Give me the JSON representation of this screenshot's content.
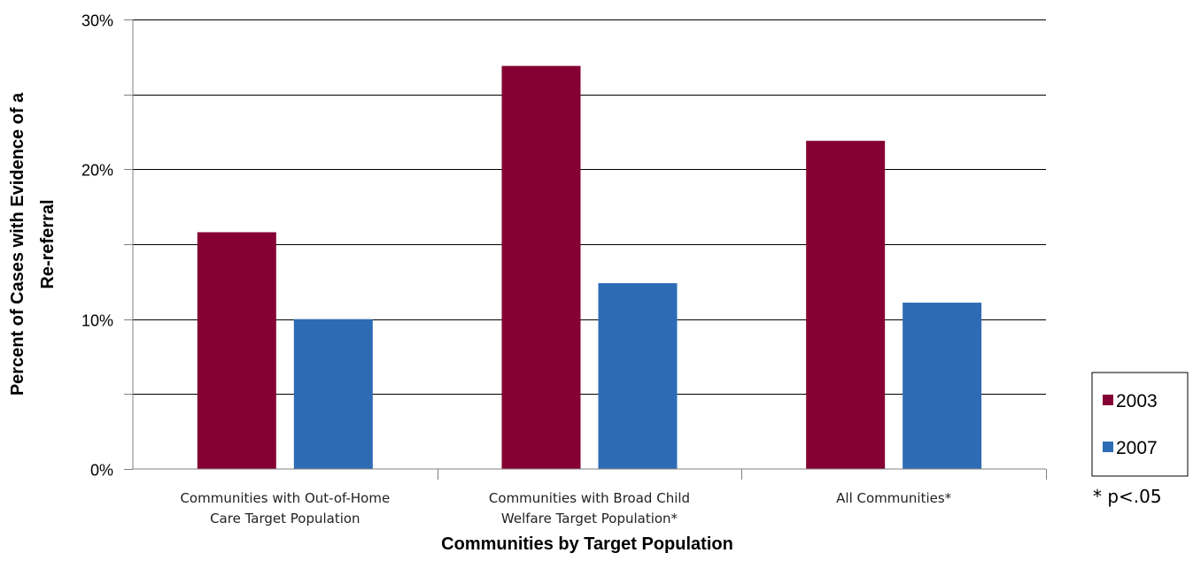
{
  "chart_data": {
    "type": "bar",
    "title": "",
    "xlabel": "Communities by Target Population",
    "ylabel": "Percent of Cases with Evidence of a Re-referral",
    "ylabel_lines": [
      "Percent of Cases with Evidence of a",
      "Re-referral"
    ],
    "ylim": [
      0,
      0.3
    ],
    "yticks": [
      0,
      0.05,
      0.1,
      0.15,
      0.2,
      0.25,
      0.3
    ],
    "ytick_labels": [
      "0%",
      "",
      "10%",
      "",
      "20%",
      "",
      "30%"
    ],
    "grid": true,
    "legend_position": "right",
    "categories": [
      "Communities with Out-of-Home Care Target Population",
      "Communities with Broad Child Welfare Target Population*",
      "All Communities*"
    ],
    "category_label_lines": [
      [
        "Communities with Out-of-Home",
        "Care Target Population"
      ],
      [
        "Communities with Broad Child",
        "Welfare Target Population*"
      ],
      [
        "All Communities*"
      ]
    ],
    "series": [
      {
        "name": "2003",
        "color": "#850033",
        "values": [
          0.158,
          0.269,
          0.219
        ]
      },
      {
        "name": "2007",
        "color": "#2e6bb5",
        "values": [
          0.1,
          0.124,
          0.111
        ]
      }
    ],
    "note": "* p<.05"
  }
}
